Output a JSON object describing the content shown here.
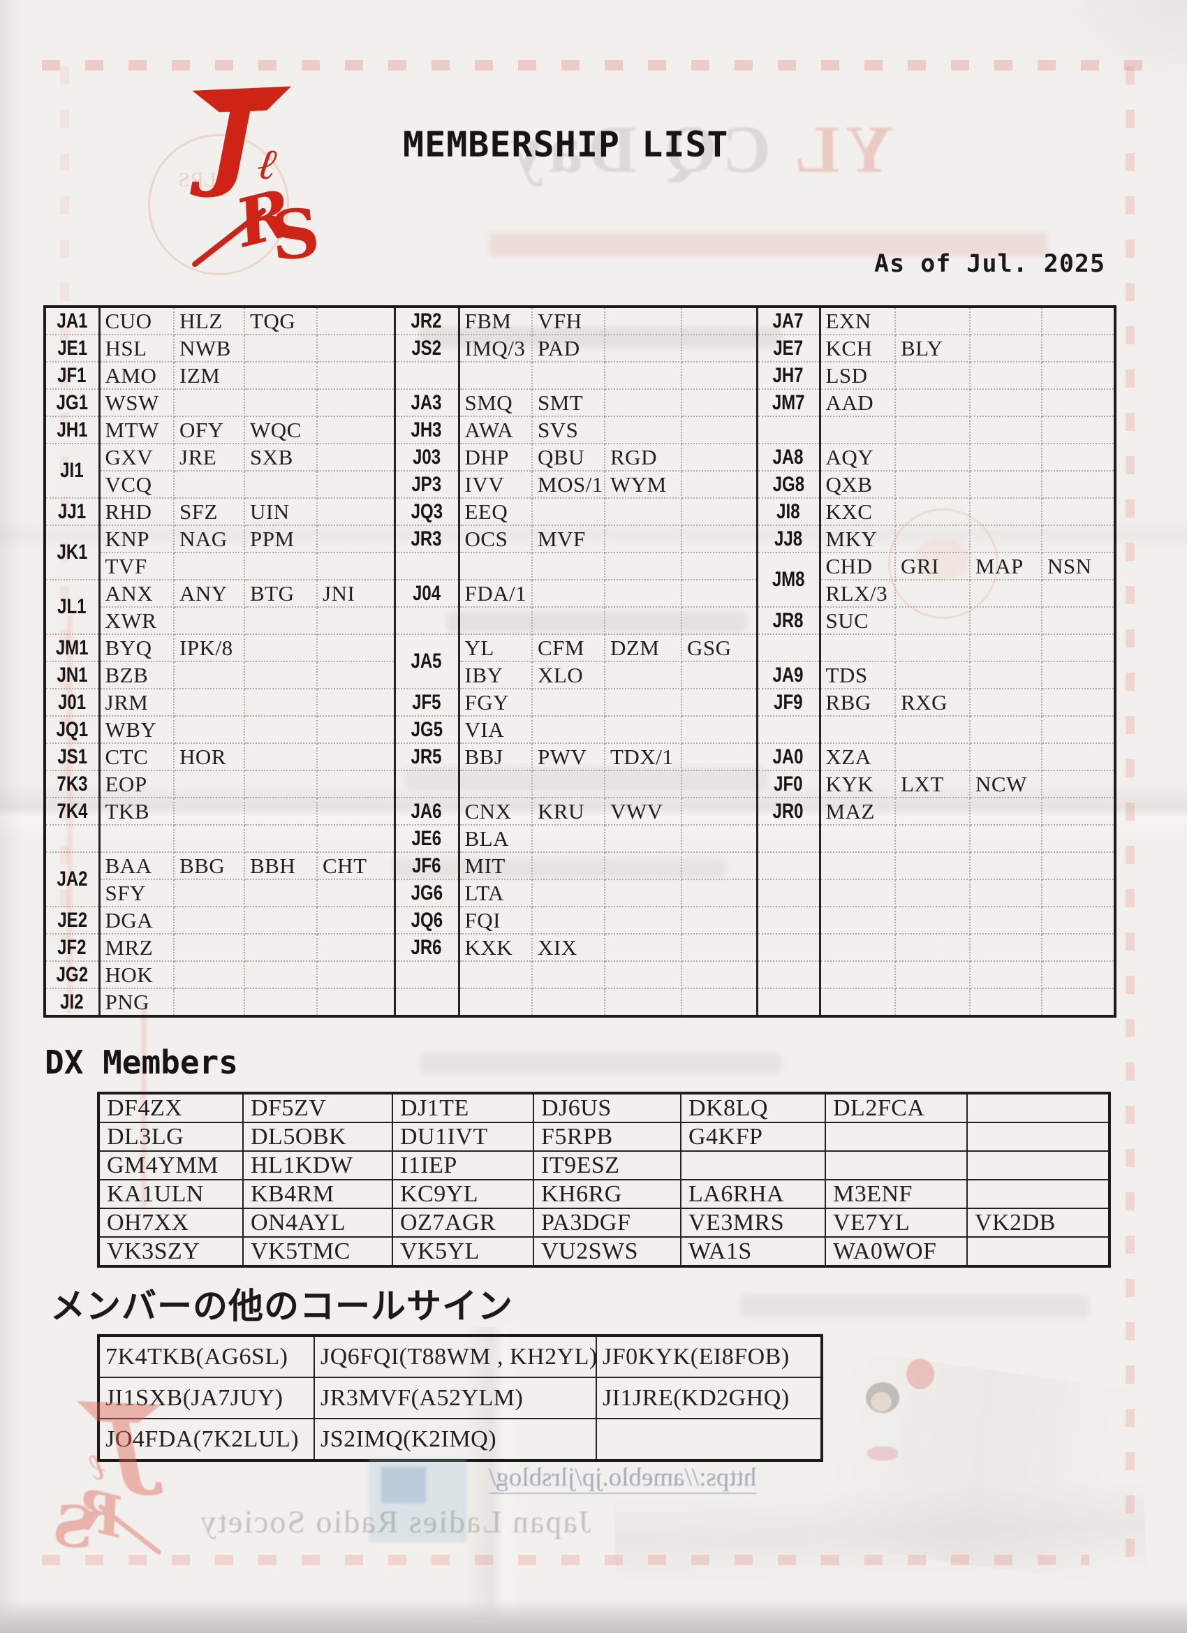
{
  "header": {
    "title": "MEMBERSHIP LIST",
    "as_of": "As of Jul. 2025",
    "logo_letters": [
      "J",
      "L",
      "R",
      "S"
    ]
  },
  "main_table": {
    "rows": [
      [
        {
          "p": "JA1",
          "v": [
            "CUO",
            "HLZ",
            "TQG",
            ""
          ]
        },
        {
          "p": "JR2",
          "v": [
            "FBM",
            "VFH",
            "",
            ""
          ]
        },
        {
          "p": "JA7",
          "v": [
            "EXN",
            "",
            "",
            ""
          ]
        }
      ],
      [
        {
          "p": "JE1",
          "v": [
            "HSL",
            "NWB",
            "",
            ""
          ]
        },
        {
          "p": "JS2",
          "v": [
            "IMQ/3",
            "PAD",
            "",
            ""
          ]
        },
        {
          "p": "JE7",
          "v": [
            "KCH",
            "BLY",
            "",
            ""
          ]
        }
      ],
      [
        {
          "p": "JF1",
          "v": [
            "AMO",
            "IZM",
            "",
            ""
          ]
        },
        {
          "p": "",
          "v": [
            "",
            "",
            "",
            ""
          ]
        },
        {
          "p": "JH7",
          "v": [
            "LSD",
            "",
            "",
            ""
          ]
        }
      ],
      [
        {
          "p": "JG1",
          "v": [
            "WSW",
            "",
            "",
            ""
          ]
        },
        {
          "p": "JA3",
          "v": [
            "SMQ",
            "SMT",
            "",
            ""
          ]
        },
        {
          "p": "JM7",
          "v": [
            "AAD",
            "",
            "",
            ""
          ]
        }
      ],
      [
        {
          "p": "JH1",
          "v": [
            "MTW",
            "OFY",
            "WQC",
            ""
          ]
        },
        {
          "p": "JH3",
          "v": [
            "AWA",
            "SVS",
            "",
            ""
          ]
        },
        {
          "p": "",
          "v": [
            "",
            "",
            "",
            ""
          ]
        }
      ],
      [
        {
          "p": "JI1",
          "s": 2,
          "v": [
            "GXV",
            "JRE",
            "SXB",
            ""
          ]
        },
        {
          "p": "J03",
          "v": [
            "DHP",
            "QBU",
            "RGD",
            ""
          ]
        },
        {
          "p": "JA8",
          "v": [
            "AQY",
            "",
            "",
            ""
          ]
        }
      ],
      [
        {
          "c": 1,
          "v": [
            "VCQ",
            "",
            "",
            ""
          ]
        },
        {
          "p": "JP3",
          "v": [
            "IVV",
            "MOS/1",
            "WYM",
            ""
          ]
        },
        {
          "p": "JG8",
          "v": [
            "QXB",
            "",
            "",
            ""
          ]
        }
      ],
      [
        {
          "p": "JJ1",
          "v": [
            "RHD",
            "SFZ",
            "UIN",
            ""
          ]
        },
        {
          "p": "JQ3",
          "v": [
            "EEQ",
            "",
            "",
            ""
          ]
        },
        {
          "p": "JI8",
          "v": [
            "KXC",
            "",
            "",
            ""
          ]
        }
      ],
      [
        {
          "p": "JK1",
          "s": 2,
          "v": [
            "KNP",
            "NAG",
            "PPM",
            ""
          ]
        },
        {
          "p": "JR3",
          "v": [
            "OCS",
            "MVF",
            "",
            ""
          ]
        },
        {
          "p": "JJ8",
          "v": [
            "MKY",
            "",
            "",
            ""
          ]
        }
      ],
      [
        {
          "c": 1,
          "v": [
            "TVF",
            "",
            "",
            ""
          ]
        },
        {
          "p": "",
          "v": [
            "",
            "",
            "",
            ""
          ]
        },
        {
          "p": "JM8",
          "s": 2,
          "v": [
            "CHD",
            "GRI",
            "MAP",
            "NSN"
          ]
        }
      ],
      [
        {
          "p": "JL1",
          "s": 2,
          "v": [
            "ANX",
            "ANY",
            "BTG",
            "JNI"
          ]
        },
        {
          "p": "J04",
          "v": [
            "FDA/1",
            "",
            "",
            ""
          ]
        },
        {
          "c": 1,
          "v": [
            "RLX/3",
            "",
            "",
            ""
          ]
        }
      ],
      [
        {
          "c": 1,
          "v": [
            "XWR",
            "",
            "",
            ""
          ]
        },
        {
          "p": "",
          "v": [
            "",
            "",
            "",
            ""
          ]
        },
        {
          "p": "JR8",
          "v": [
            "SUC",
            "",
            "",
            ""
          ]
        }
      ],
      [
        {
          "p": "JM1",
          "v": [
            "BYQ",
            "IPK/8",
            "",
            ""
          ]
        },
        {
          "p": "JA5",
          "s": 2,
          "v": [
            "YL",
            "CFM",
            "DZM",
            "GSG"
          ]
        },
        {
          "p": "",
          "v": [
            "",
            "",
            "",
            ""
          ]
        }
      ],
      [
        {
          "p": "JN1",
          "v": [
            "BZB",
            "",
            "",
            ""
          ]
        },
        {
          "c": 1,
          "v": [
            "IBY",
            "XLO",
            "",
            ""
          ]
        },
        {
          "p": "JA9",
          "v": [
            "TDS",
            "",
            "",
            ""
          ]
        }
      ],
      [
        {
          "p": "J01",
          "v": [
            "JRM",
            "",
            "",
            ""
          ]
        },
        {
          "p": "JF5",
          "v": [
            "FGY",
            "",
            "",
            ""
          ]
        },
        {
          "p": "JF9",
          "v": [
            "RBG",
            "RXG",
            "",
            ""
          ]
        }
      ],
      [
        {
          "p": "JQ1",
          "v": [
            "WBY",
            "",
            "",
            ""
          ]
        },
        {
          "p": "JG5",
          "v": [
            "VIA",
            "",
            "",
            ""
          ]
        },
        {
          "p": "",
          "v": [
            "",
            "",
            "",
            ""
          ]
        }
      ],
      [
        {
          "p": "JS1",
          "v": [
            "CTC",
            "HOR",
            "",
            ""
          ]
        },
        {
          "p": "JR5",
          "v": [
            "BBJ",
            "PWV",
            "TDX/1",
            ""
          ]
        },
        {
          "p": "JA0",
          "v": [
            "XZA",
            "",
            "",
            ""
          ]
        }
      ],
      [
        {
          "p": "7K3",
          "v": [
            "EOP",
            "",
            "",
            ""
          ]
        },
        {
          "p": "",
          "v": [
            "",
            "",
            "",
            ""
          ]
        },
        {
          "p": "JF0",
          "v": [
            "KYK",
            "LXT",
            "NCW",
            ""
          ]
        }
      ],
      [
        {
          "p": "7K4",
          "v": [
            "TKB",
            "",
            "",
            ""
          ]
        },
        {
          "p": "JA6",
          "v": [
            "CNX",
            "KRU",
            "VWV",
            ""
          ]
        },
        {
          "p": "JR0",
          "v": [
            "MAZ",
            "",
            "",
            ""
          ]
        }
      ],
      [
        {
          "p": "",
          "v": [
            "",
            "",
            "",
            ""
          ]
        },
        {
          "p": "JE6",
          "v": [
            "BLA",
            "",
            "",
            ""
          ]
        },
        {
          "p": "",
          "v": [
            "",
            "",
            "",
            ""
          ]
        }
      ],
      [
        {
          "p": "JA2",
          "s": 2,
          "v": [
            "BAA",
            "BBG",
            "BBH",
            "CHT"
          ]
        },
        {
          "p": "JF6",
          "v": [
            "MIT",
            "",
            "",
            ""
          ]
        },
        {
          "p": "",
          "v": [
            "",
            "",
            "",
            ""
          ]
        }
      ],
      [
        {
          "c": 1,
          "v": [
            "SFY",
            "",
            "",
            ""
          ]
        },
        {
          "p": "JG6",
          "v": [
            "LTA",
            "",
            "",
            ""
          ]
        },
        {
          "p": "",
          "v": [
            "",
            "",
            "",
            ""
          ]
        }
      ],
      [
        {
          "p": "JE2",
          "v": [
            "DGA",
            "",
            "",
            ""
          ]
        },
        {
          "p": "JQ6",
          "v": [
            "FQI",
            "",
            "",
            ""
          ]
        },
        {
          "p": "",
          "v": [
            "",
            "",
            "",
            ""
          ]
        }
      ],
      [
        {
          "p": "JF2",
          "v": [
            "MRZ",
            "",
            "",
            ""
          ]
        },
        {
          "p": "JR6",
          "v": [
            "KXK",
            "XIX",
            "",
            ""
          ]
        },
        {
          "p": "",
          "v": [
            "",
            "",
            "",
            ""
          ]
        }
      ],
      [
        {
          "p": "JG2",
          "v": [
            "HOK",
            "",
            "",
            ""
          ]
        },
        {
          "p": "",
          "v": [
            "",
            "",
            "",
            ""
          ]
        },
        {
          "p": "",
          "v": [
            "",
            "",
            "",
            ""
          ]
        }
      ],
      [
        {
          "p": "JI2",
          "v": [
            "PNG",
            "",
            "",
            ""
          ]
        },
        {
          "p": "",
          "v": [
            "",
            "",
            "",
            ""
          ]
        },
        {
          "p": "",
          "v": [
            "",
            "",
            "",
            ""
          ]
        }
      ]
    ]
  },
  "dx_section": {
    "title": "DX Members",
    "rows": [
      [
        "DF4ZX",
        "DF5ZV",
        "DJ1TE",
        "DJ6US",
        "DK8LQ",
        "DL2FCA",
        ""
      ],
      [
        "DL3LG",
        "DL5OBK",
        "DU1IVT",
        "F5RPB",
        "G4KFP",
        "",
        ""
      ],
      [
        "GM4YMM",
        "HL1KDW",
        "I1IEP",
        "IT9ESZ",
        "",
        "",
        ""
      ],
      [
        "KA1ULN",
        "KB4RM",
        "KC9YL",
        "KH6RG",
        "LA6RHA",
        "M3ENF",
        ""
      ],
      [
        "OH7XX",
        "ON4AYL",
        "OZ7AGR",
        "PA3DGF",
        "VE3MRS",
        "VE7YL",
        "VK2DB"
      ],
      [
        "VK3SZY",
        "VK5TMC",
        "VK5YL",
        "VU2SWS",
        "WA1S",
        "WA0WOF",
        ""
      ]
    ]
  },
  "other_calls_section": {
    "title": "メンバーの他のコールサイン",
    "rows": [
      [
        "7K4TKB(AG6SL)",
        "JQ6FQI(T88WM , KH2YL)",
        "JF0KYK(EI8FOB)"
      ],
      [
        "JI1SXB(JA7JUY)",
        "JR3MVF(A52YLM)",
        "JI1JRE(KD2GHQ)"
      ],
      [
        "JO4FDA(7K2LUL)",
        "JS2IMQ(K2IMQ)",
        ""
      ]
    ]
  },
  "bleed_through": {
    "event_yl": "YL ",
    "event_rest": "CQ Day",
    "society": "Japan Ladies Radio Society",
    "url": "https://ameblo.jp/jlrsblog/",
    "stamp_text": "JLRS"
  },
  "colors": {
    "paper": "#f2f0ed",
    "ink": "#1c1b19",
    "stamp_red": "#cf2315",
    "grid_dotted": "#b3ada4",
    "pink_border": "#e07a74",
    "bleed_blue": "#6473a0"
  }
}
